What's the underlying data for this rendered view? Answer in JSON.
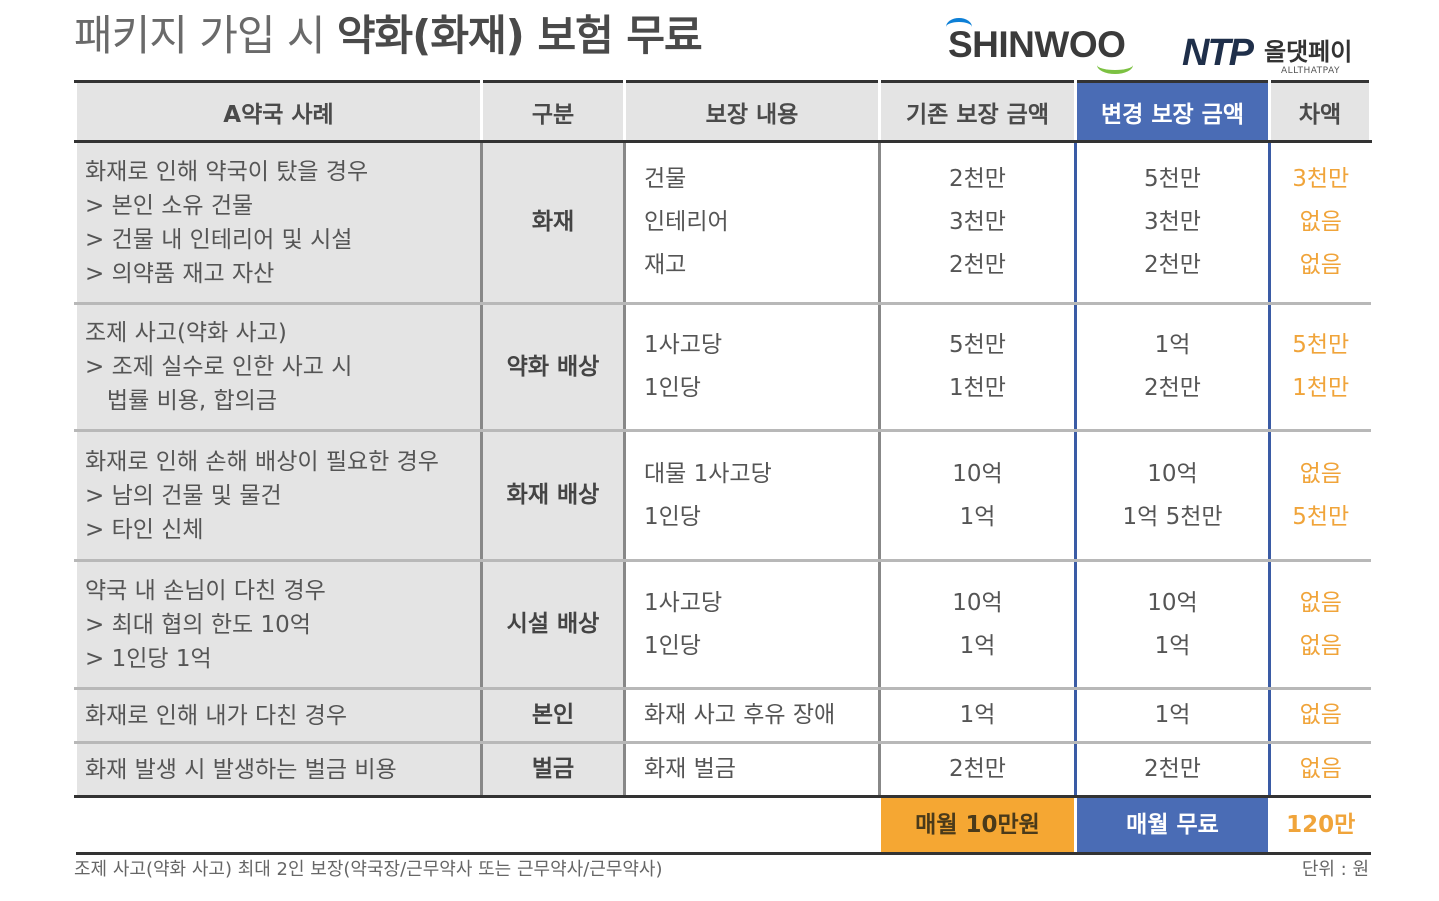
{
  "title": {
    "normal": "패키지 가입 시 ",
    "bold": "약화(화재) 보험 무료"
  },
  "logos": {
    "shinwoo": "SHINWOO",
    "atp_mark": "NTP",
    "atp_name": "올댓페이",
    "atp_sub": "ALLTHATPAY"
  },
  "table": {
    "headers": [
      "A약국 사례",
      "구분",
      "보장 내용",
      "기존 보장 금액",
      "변경 보장 금액",
      "차액"
    ],
    "rows": [
      {
        "case_lines": [
          "화재로 인해 약국이 탔을 경우",
          "> 본인 소유 건물",
          "> 건물 내 인테리어 및 시설",
          "> 의약품 재고 자산"
        ],
        "category": "화재",
        "content": [
          "건물",
          "인테리어",
          "재고"
        ],
        "existing": [
          "2천만",
          "3천만",
          "2천만"
        ],
        "changed": [
          "5천만",
          "3천만",
          "2천만"
        ],
        "diff": [
          "3천만",
          "없음",
          "없음"
        ]
      },
      {
        "case_lines": [
          "조제 사고(약화 사고)",
          "> 조제 실수로 인한 사고 시",
          "   법률 비용, 합의금"
        ],
        "category": "약화 배상",
        "content": [
          "1사고당",
          "1인당"
        ],
        "existing": [
          "5천만",
          "1천만"
        ],
        "changed": [
          "1억",
          "2천만"
        ],
        "diff": [
          "5천만",
          "1천만"
        ]
      },
      {
        "case_lines": [
          "화재로 인해 손해 배상이 필요한 경우",
          "> 남의 건물 및 물건",
          "> 타인 신체"
        ],
        "category": "화재 배상",
        "content": [
          "대물 1사고당",
          "1인당"
        ],
        "existing": [
          "10억",
          "1억"
        ],
        "changed": [
          "10억",
          "1억 5천만"
        ],
        "diff": [
          "없음",
          "5천만"
        ]
      },
      {
        "case_lines": [
          "약국 내 손님이 다친 경우",
          "> 최대 협의 한도 10억",
          "> 1인당 1억"
        ],
        "category": "시설 배상",
        "content": [
          "1사고당",
          "1인당"
        ],
        "existing": [
          "10억",
          "1억"
        ],
        "changed": [
          "10억",
          "1억"
        ],
        "diff": [
          "없음",
          "없음"
        ]
      },
      {
        "case_lines": [
          "화재로 인해 내가 다친 경우"
        ],
        "category": "본인",
        "content": [
          "화재 사고 후유 장애"
        ],
        "existing": [
          "1억"
        ],
        "changed": [
          "1억"
        ],
        "diff": [
          "없음"
        ]
      },
      {
        "case_lines": [
          "화재 발생 시 발생하는 벌금 비용"
        ],
        "category": "벌금",
        "content": [
          "화재 벌금"
        ],
        "existing": [
          "2천만"
        ],
        "changed": [
          "2천만"
        ],
        "diff": [
          "없음"
        ]
      }
    ],
    "footer": {
      "monthly_fee": "매월 10만원",
      "free": "매월 무료",
      "diff": "120만"
    }
  },
  "note": "조제 사고(약화 사고) 최대 2인 보장(약국장/근무약사 또는 근무약사/근무약사)",
  "unit": "단위 : 원",
  "colors": {
    "changed_header": "#4a6cb5",
    "monthly_fee": "#f5a733",
    "diff_text": "#f0a43a",
    "row_bg": "#e4e4e4"
  }
}
